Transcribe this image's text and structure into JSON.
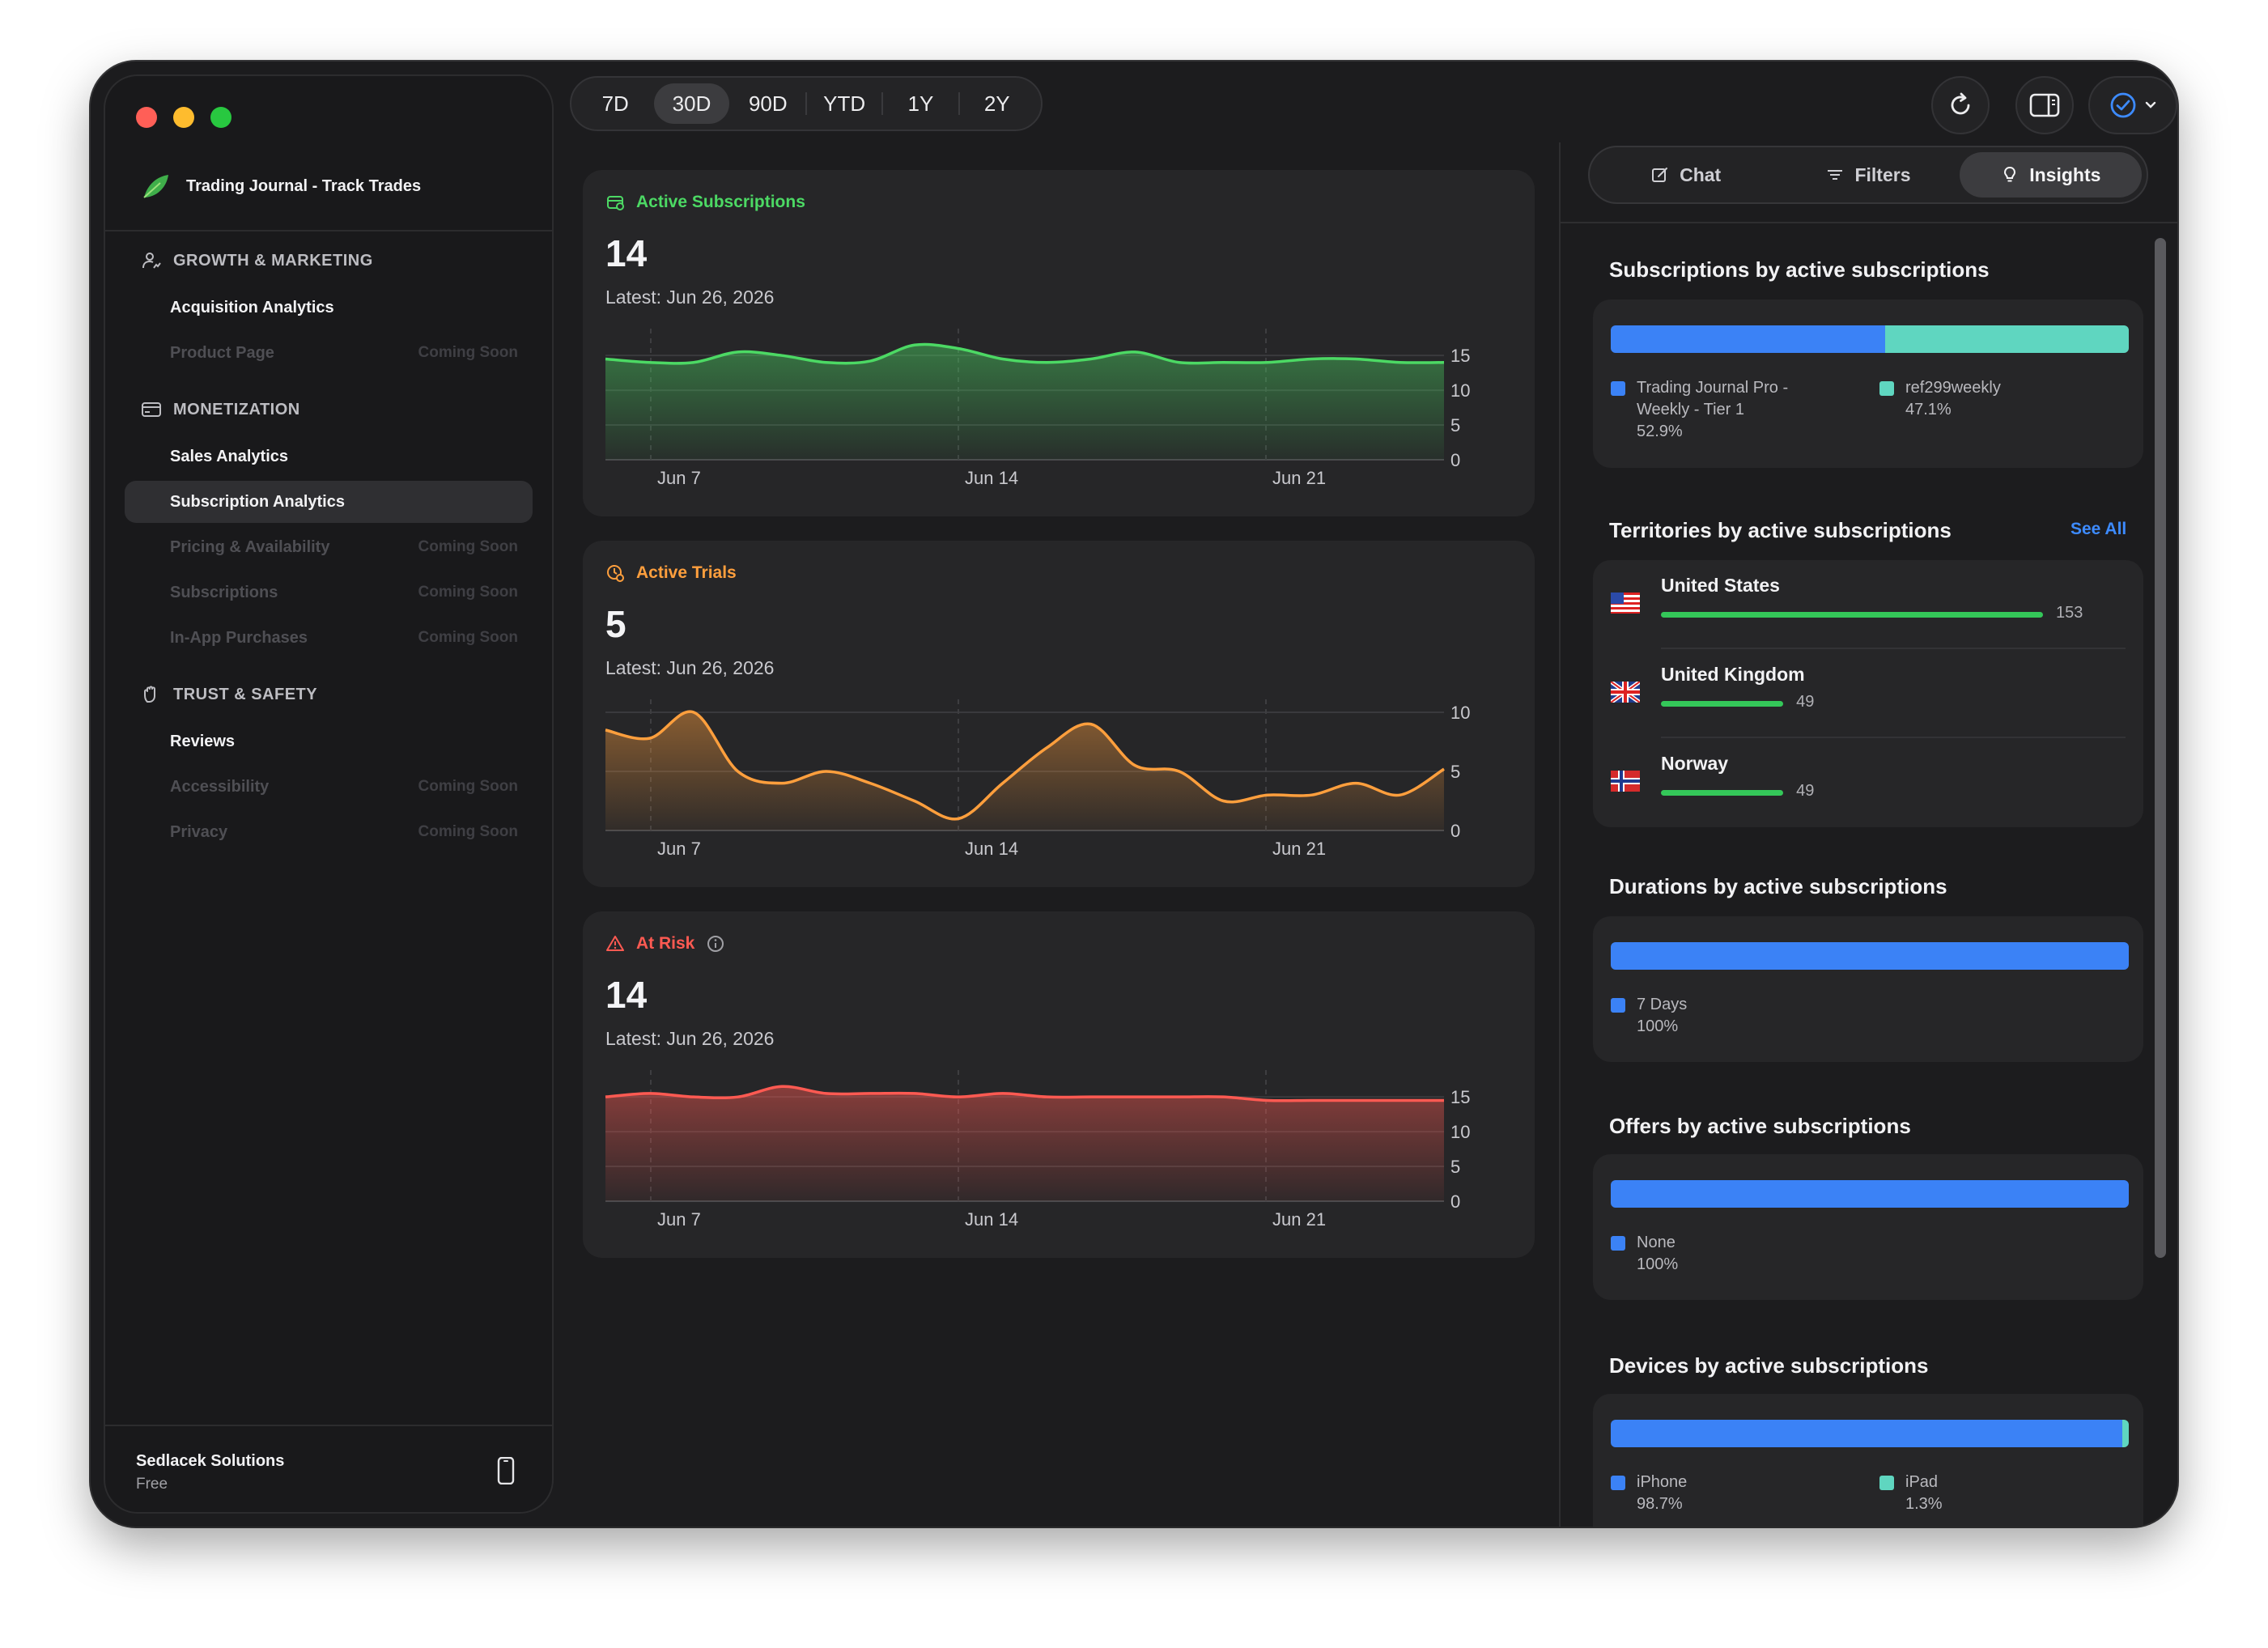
{
  "app": {
    "title": "Trading Journal - Track Trades"
  },
  "sidebar": {
    "sections": [
      {
        "label": "GROWTH & MARKETING",
        "icon": "person-chart-icon",
        "items": [
          {
            "label": "Acquisition Analytics",
            "badge": "",
            "enabled": true,
            "active": false
          },
          {
            "label": "Product Page",
            "badge": "Coming Soon",
            "enabled": false,
            "active": false
          }
        ]
      },
      {
        "label": "MONETIZATION",
        "icon": "credit-card-icon",
        "items": [
          {
            "label": "Sales Analytics",
            "badge": "",
            "enabled": true,
            "active": false
          },
          {
            "label": "Subscription Analytics",
            "badge": "",
            "enabled": true,
            "active": true
          },
          {
            "label": "Pricing & Availability",
            "badge": "Coming Soon",
            "enabled": false,
            "active": false
          },
          {
            "label": "Subscriptions",
            "badge": "Coming Soon",
            "enabled": false,
            "active": false
          },
          {
            "label": "In-App Purchases",
            "badge": "Coming Soon",
            "enabled": false,
            "active": false
          }
        ]
      },
      {
        "label": "TRUST & SAFETY",
        "icon": "hand-raised-icon",
        "items": [
          {
            "label": "Reviews",
            "badge": "",
            "enabled": true,
            "active": false
          },
          {
            "label": "Accessibility",
            "badge": "Coming Soon",
            "enabled": false,
            "active": false
          },
          {
            "label": "Privacy",
            "badge": "Coming Soon",
            "enabled": false,
            "active": false
          }
        ]
      }
    ],
    "org": {
      "name": "Sedlacek Solutions",
      "plan": "Free"
    }
  },
  "range": {
    "options": [
      "7D",
      "30D",
      "90D",
      "YTD",
      "1Y",
      "2Y"
    ],
    "selected": "30D"
  },
  "colors": {
    "green": "#34c759",
    "orange": "#ff9f3d",
    "red": "#ff5a52",
    "blue": "#3b82f6",
    "teal": "#5fd6c0",
    "link": "#3d8bff"
  },
  "cards": [
    {
      "id": "active-subscriptions",
      "label": "Active Subscriptions",
      "icon": "subscription-icon",
      "color": "#4cd964",
      "value": "14",
      "latest": "Latest: Jun 26, 2026",
      "chart_data": {
        "type": "area",
        "x_ticks": [
          "Jun 7",
          "Jun 14",
          "Jun 21"
        ],
        "y_ticks": [
          0,
          5,
          10,
          15
        ],
        "ylim": [
          0,
          17
        ],
        "values": [
          14.5,
          14,
          14,
          15.5,
          15,
          14,
          14.2,
          16.5,
          16,
          14.5,
          14,
          14.5,
          15.5,
          14,
          14,
          14,
          14.5,
          14.5,
          14,
          14
        ]
      }
    },
    {
      "id": "active-trials",
      "label": "Active Trials",
      "icon": "trial-clock-icon",
      "color": "#ff9f3d",
      "value": "5",
      "latest": "Latest: Jun 26, 2026",
      "chart_data": {
        "type": "area",
        "x_ticks": [
          "Jun 7",
          "Jun 14",
          "Jun 21"
        ],
        "y_ticks": [
          0,
          5,
          10
        ],
        "ylim": [
          0,
          10
        ],
        "values": [
          8.5,
          7.8,
          10,
          5,
          4,
          5,
          4,
          2.5,
          1,
          4,
          7,
          9,
          5.5,
          5,
          2.5,
          3,
          3,
          4,
          3,
          5.2
        ]
      }
    },
    {
      "id": "at-risk",
      "label": "At Risk",
      "icon": "warning-triangle-icon",
      "color": "#ff5a52",
      "value": "14",
      "latest": "Latest: Jun 26, 2026",
      "chart_data": {
        "type": "area",
        "x_ticks": [
          "Jun 7",
          "Jun 14",
          "Jun 21"
        ],
        "y_ticks": [
          0,
          5,
          10,
          15
        ],
        "ylim": [
          0,
          17
        ],
        "values": [
          15,
          15.5,
          15,
          15,
          16.5,
          15.5,
          15.5,
          15.5,
          15,
          15.5,
          15,
          15,
          15,
          15,
          15,
          14.5,
          14.5,
          14.5,
          14.5,
          14.5
        ]
      }
    }
  ],
  "insights": {
    "tabs": [
      {
        "label": "Chat",
        "icon": "compose-icon",
        "selected": false
      },
      {
        "label": "Filters",
        "icon": "filter-lines-icon",
        "selected": false
      },
      {
        "label": "Insights",
        "icon": "lightbulb-icon",
        "selected": true
      }
    ],
    "subscriptions": {
      "title": "Subscriptions by active subscriptions",
      "segments": [
        {
          "label": "Trading Journal Pro - Weekly - Tier 1",
          "pct": "52.9%",
          "value": 52.9,
          "color": "#3b82f6"
        },
        {
          "label": "ref299weekly",
          "pct": "47.1%",
          "value": 47.1,
          "color": "#5fd6c0"
        }
      ]
    },
    "territories": {
      "title": "Territories by active subscriptions",
      "see_all": "See All",
      "rows": [
        {
          "name": "United States",
          "count": 153,
          "flag": "us-flag-icon"
        },
        {
          "name": "United Kingdom",
          "count": 49,
          "flag": "uk-flag-icon"
        },
        {
          "name": "Norway",
          "count": 49,
          "flag": "norway-flag-icon"
        }
      ]
    },
    "durations": {
      "title": "Durations by active subscriptions",
      "segments": [
        {
          "label": "7 Days",
          "pct": "100%",
          "value": 100,
          "color": "#3b82f6"
        }
      ]
    },
    "offers": {
      "title": "Offers by active subscriptions",
      "segments": [
        {
          "label": "None",
          "pct": "100%",
          "value": 100,
          "color": "#3b82f6"
        }
      ]
    },
    "devices": {
      "title": "Devices by active subscriptions",
      "segments": [
        {
          "label": "iPhone",
          "pct": "98.7%",
          "value": 98.7,
          "color": "#3b82f6"
        },
        {
          "label": "iPad",
          "pct": "1.3%",
          "value": 1.3,
          "color": "#5fd6c0"
        }
      ]
    }
  }
}
